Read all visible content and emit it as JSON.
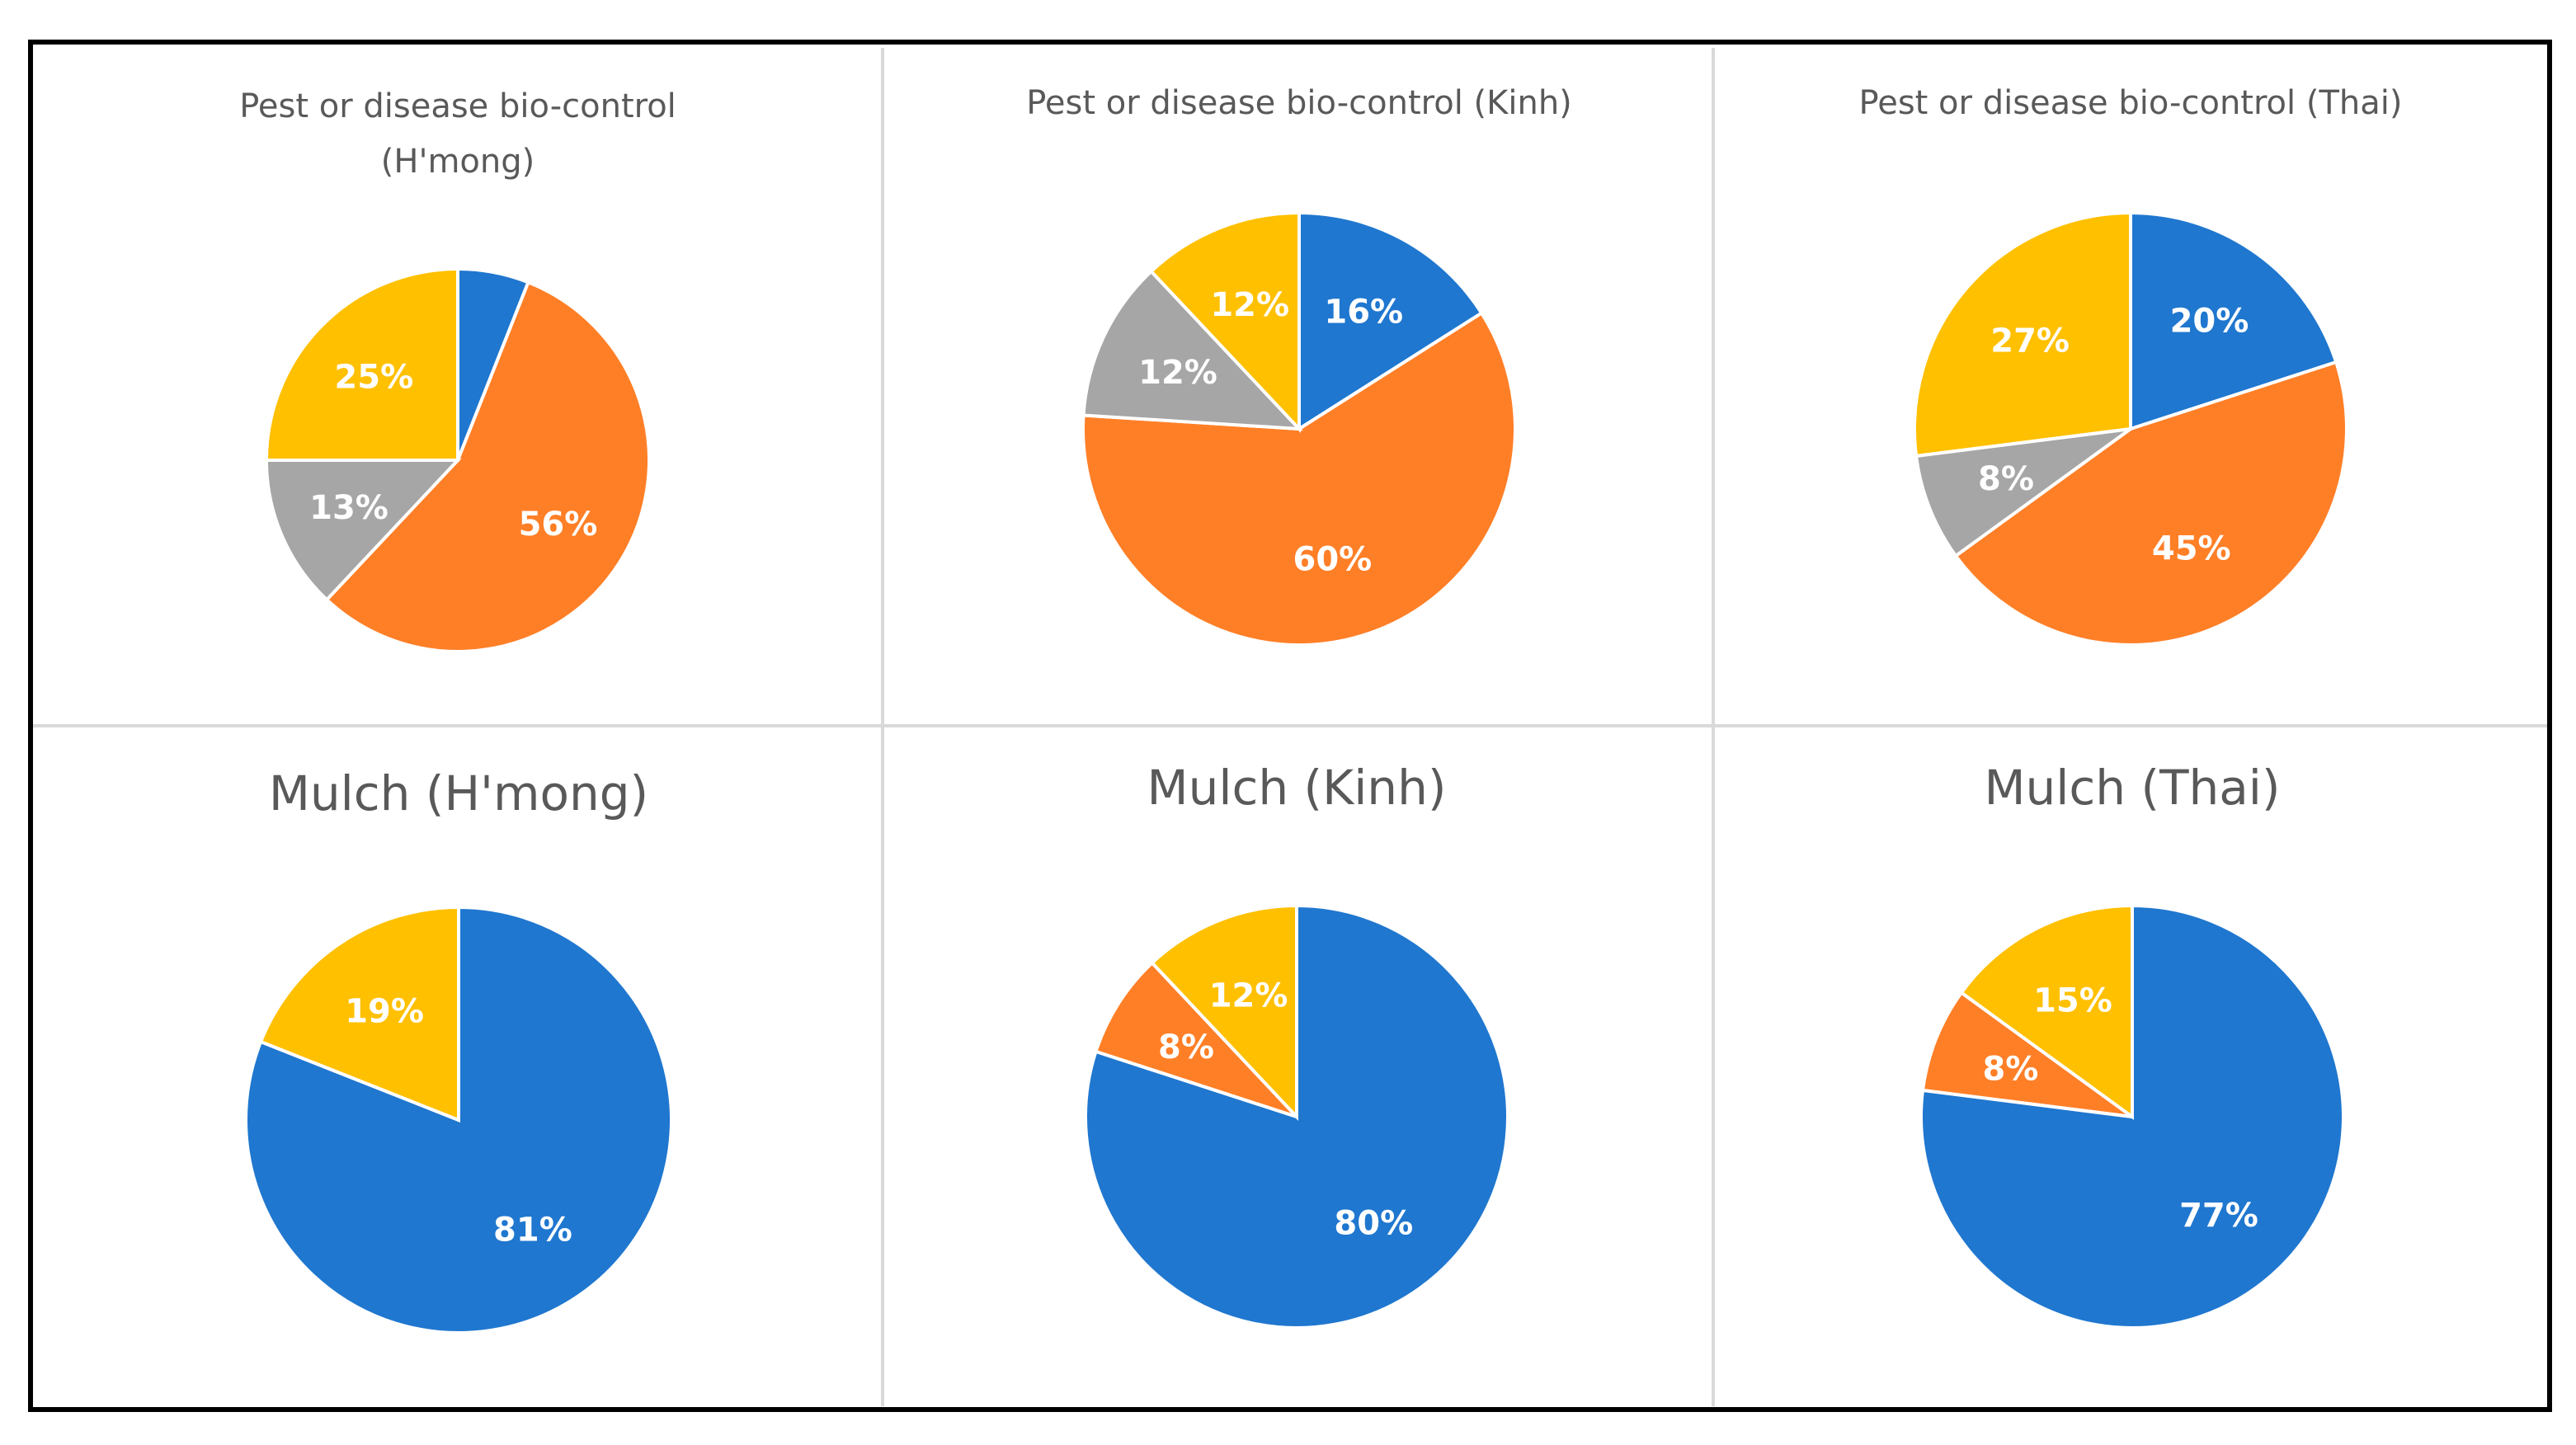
{
  "colors": {
    "blue": "#1F77CF",
    "orange": "#FF7F27",
    "gray": "#A6A6A6",
    "yellow": "#FFC000",
    "grid": "#D9D9D9",
    "title": "#595959"
  },
  "chart_data": [
    {
      "type": "pie",
      "title": [
        "Pest or disease bio-control",
        "(H'mong)"
      ],
      "slices": [
        {
          "color": "blue",
          "value": 6,
          "label": ""
        },
        {
          "color": "orange",
          "value": 56,
          "label": "56%"
        },
        {
          "color": "gray",
          "value": 13,
          "label": "13%"
        },
        {
          "color": "yellow",
          "value": 25,
          "label": "25%"
        }
      ]
    },
    {
      "type": "pie",
      "title": [
        "Pest or disease bio-control (Kinh)"
      ],
      "slices": [
        {
          "color": "blue",
          "value": 16,
          "label": "16%"
        },
        {
          "color": "orange",
          "value": 60,
          "label": "60%"
        },
        {
          "color": "gray",
          "value": 12,
          "label": "12%"
        },
        {
          "color": "yellow",
          "value": 12,
          "label": "12%"
        }
      ]
    },
    {
      "type": "pie",
      "title": [
        "Pest or disease bio-control (Thai)"
      ],
      "slices": [
        {
          "color": "blue",
          "value": 20,
          "label": "20%"
        },
        {
          "color": "orange",
          "value": 45,
          "label": "45%"
        },
        {
          "color": "gray",
          "value": 8,
          "label": "8%"
        },
        {
          "color": "yellow",
          "value": 27,
          "label": "27%"
        }
      ]
    },
    {
      "type": "pie",
      "title": [
        "Mulch (H'mong)"
      ],
      "slices": [
        {
          "color": "blue",
          "value": 81,
          "label": "81%"
        },
        {
          "color": "orange",
          "value": 0,
          "label": ""
        },
        {
          "color": "gray",
          "value": 0,
          "label": ""
        },
        {
          "color": "yellow",
          "value": 19,
          "label": "19%"
        }
      ]
    },
    {
      "type": "pie",
      "title": [
        "Mulch (Kinh)"
      ],
      "slices": [
        {
          "color": "blue",
          "value": 80,
          "label": "80%"
        },
        {
          "color": "orange",
          "value": 8,
          "label": "8%"
        },
        {
          "color": "gray",
          "value": 0,
          "label": ""
        },
        {
          "color": "yellow",
          "value": 12,
          "label": "12%"
        }
      ]
    },
    {
      "type": "pie",
      "title": [
        "Mulch (Thai)"
      ],
      "slices": [
        {
          "color": "blue",
          "value": 77,
          "label": "77%"
        },
        {
          "color": "orange",
          "value": 8,
          "label": "8%"
        },
        {
          "color": "gray",
          "value": 0,
          "label": ""
        },
        {
          "color": "yellow",
          "value": 15,
          "label": "15%"
        }
      ]
    }
  ]
}
